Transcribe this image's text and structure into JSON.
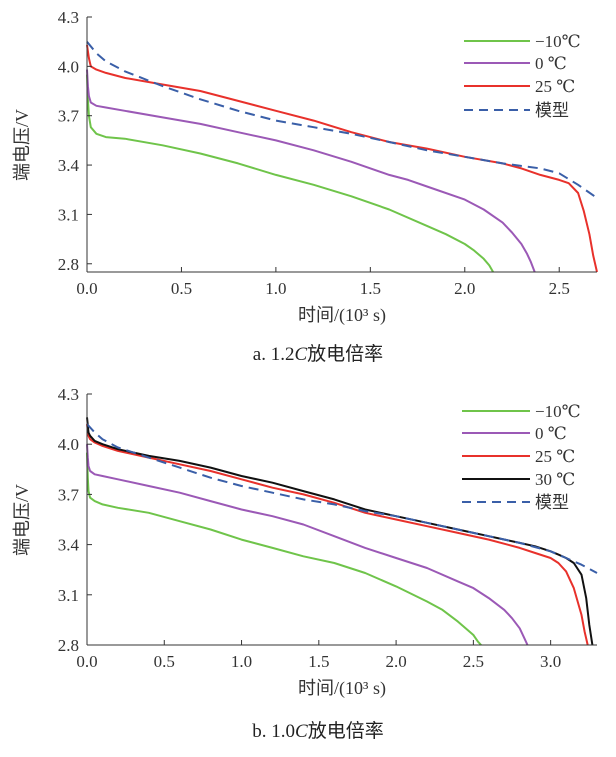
{
  "chart_data": [
    {
      "type": "line",
      "caption": "a. 1.2C放电倍率",
      "caption_prefix": "a. 1.2",
      "caption_italic": "C",
      "caption_suffix": "放电倍率",
      "xlabel": "时间/(10³ s)",
      "ylabel": "端电压/V",
      "xlim": [
        0,
        2.7
      ],
      "ylim": [
        2.75,
        4.3
      ],
      "xticks": [
        "0.0",
        "0.5",
        "1.0",
        "1.5",
        "2.0",
        "2.5"
      ],
      "xtick_values": [
        0,
        0.5,
        1.0,
        1.5,
        2.0,
        2.5
      ],
      "yticks": [
        "2.8",
        "3.1",
        "3.4",
        "3.7",
        "4.0",
        "4.3"
      ],
      "ytick_values": [
        2.8,
        3.1,
        3.4,
        3.7,
        4.0,
        4.3
      ],
      "legend_position": "top-right",
      "series": [
        {
          "name": "−10℃",
          "color": "#6fc44a",
          "dash": false,
          "x": [
            0,
            0.005,
            0.01,
            0.02,
            0.05,
            0.1,
            0.2,
            0.4,
            0.6,
            0.8,
            1.0,
            1.2,
            1.4,
            1.6,
            1.8,
            1.9,
            2.0,
            2.05,
            2.1,
            2.13,
            2.15
          ],
          "y": [
            3.95,
            3.8,
            3.7,
            3.63,
            3.59,
            3.57,
            3.56,
            3.52,
            3.47,
            3.41,
            3.34,
            3.28,
            3.21,
            3.13,
            3.03,
            2.98,
            2.92,
            2.88,
            2.83,
            2.79,
            2.75
          ]
        },
        {
          "name": "0 ℃",
          "color": "#9b59b6",
          "dash": false,
          "x": [
            0,
            0.005,
            0.01,
            0.02,
            0.05,
            0.1,
            0.2,
            0.4,
            0.6,
            0.8,
            1.0,
            1.2,
            1.4,
            1.6,
            1.7,
            1.8,
            2.0,
            2.1,
            2.2,
            2.25,
            2.3,
            2.33,
            2.35,
            2.37
          ],
          "y": [
            3.98,
            3.88,
            3.82,
            3.78,
            3.76,
            3.75,
            3.73,
            3.69,
            3.65,
            3.6,
            3.55,
            3.49,
            3.42,
            3.34,
            3.31,
            3.27,
            3.19,
            3.13,
            3.05,
            2.99,
            2.92,
            2.86,
            2.81,
            2.75
          ]
        },
        {
          "name": "25 ℃",
          "color": "#e8312b",
          "dash": false,
          "x": [
            0,
            0.01,
            0.02,
            0.05,
            0.1,
            0.2,
            0.4,
            0.6,
            0.8,
            1.0,
            1.2,
            1.4,
            1.6,
            1.8,
            2.0,
            2.2,
            2.3,
            2.4,
            2.5,
            2.55,
            2.6,
            2.63,
            2.66,
            2.68,
            2.7
          ],
          "y": [
            4.13,
            4.05,
            4.0,
            3.98,
            3.96,
            3.93,
            3.89,
            3.85,
            3.79,
            3.73,
            3.67,
            3.6,
            3.54,
            3.5,
            3.45,
            3.41,
            3.38,
            3.34,
            3.31,
            3.29,
            3.23,
            3.12,
            2.98,
            2.85,
            2.75
          ]
        },
        {
          "name": "模型",
          "color": "#3a5fa8",
          "dash": true,
          "x": [
            0,
            0.05,
            0.1,
            0.2,
            0.4,
            0.6,
            0.8,
            1.0,
            1.2,
            1.4,
            1.6,
            1.8,
            2.0,
            2.2,
            2.4,
            2.5,
            2.6,
            2.7
          ],
          "y": [
            4.15,
            4.08,
            4.03,
            3.97,
            3.88,
            3.8,
            3.73,
            3.67,
            3.63,
            3.59,
            3.54,
            3.49,
            3.45,
            3.41,
            3.38,
            3.35,
            3.28,
            3.2
          ]
        }
      ]
    },
    {
      "type": "line",
      "caption": "b. 1.0C放电倍率",
      "caption_prefix": "b. 1.0",
      "caption_italic": "C",
      "caption_suffix": "放电倍率",
      "xlabel": "时间/(10³ s)",
      "ylabel": "端电压/V",
      "xlim": [
        0,
        3.3
      ],
      "ylim": [
        2.8,
        4.3
      ],
      "xticks": [
        "0.0",
        "0.5",
        "1.0",
        "1.5",
        "2.0",
        "2.5",
        "3.0"
      ],
      "xtick_values": [
        0,
        0.5,
        1.0,
        1.5,
        2.0,
        2.5,
        3.0
      ],
      "yticks": [
        "2.8",
        "3.1",
        "3.4",
        "3.7",
        "4.0",
        "4.3"
      ],
      "ytick_values": [
        2.8,
        3.1,
        3.4,
        3.7,
        4.0,
        4.3
      ],
      "legend_position": "top-right",
      "series": [
        {
          "name": "−10℃",
          "color": "#6fc44a",
          "dash": false,
          "x": [
            0,
            0.005,
            0.01,
            0.02,
            0.05,
            0.1,
            0.2,
            0.4,
            0.6,
            0.8,
            1.0,
            1.2,
            1.4,
            1.6,
            1.8,
            2.0,
            2.2,
            2.3,
            2.4,
            2.45,
            2.5,
            2.53,
            2.55
          ],
          "y": [
            3.95,
            3.8,
            3.72,
            3.68,
            3.66,
            3.64,
            3.62,
            3.59,
            3.54,
            3.49,
            3.43,
            3.38,
            3.33,
            3.29,
            3.23,
            3.15,
            3.06,
            3.01,
            2.94,
            2.9,
            2.86,
            2.82,
            2.8
          ]
        },
        {
          "name": "0 ℃",
          "color": "#9b59b6",
          "dash": false,
          "x": [
            0,
            0.005,
            0.01,
            0.02,
            0.05,
            0.1,
            0.2,
            0.4,
            0.6,
            0.8,
            1.0,
            1.2,
            1.4,
            1.6,
            1.8,
            2.0,
            2.2,
            2.4,
            2.5,
            2.6,
            2.7,
            2.75,
            2.8,
            2.83,
            2.85
          ],
          "y": [
            4.0,
            3.92,
            3.87,
            3.84,
            3.82,
            3.81,
            3.79,
            3.75,
            3.71,
            3.66,
            3.61,
            3.57,
            3.52,
            3.45,
            3.38,
            3.32,
            3.26,
            3.18,
            3.14,
            3.08,
            3.01,
            2.96,
            2.9,
            2.84,
            2.8
          ]
        },
        {
          "name": "25 ℃",
          "color": "#e8312b",
          "dash": false,
          "x": [
            0,
            0.01,
            0.02,
            0.05,
            0.1,
            0.2,
            0.4,
            0.6,
            0.8,
            1.0,
            1.2,
            1.4,
            1.6,
            1.8,
            2.0,
            2.2,
            2.4,
            2.6,
            2.8,
            2.9,
            3.0,
            3.05,
            3.1,
            3.15,
            3.2,
            3.22,
            3.24
          ],
          "y": [
            4.12,
            4.05,
            4.03,
            4.01,
            3.99,
            3.96,
            3.92,
            3.88,
            3.84,
            3.79,
            3.74,
            3.7,
            3.65,
            3.59,
            3.55,
            3.51,
            3.47,
            3.43,
            3.38,
            3.35,
            3.32,
            3.29,
            3.24,
            3.14,
            2.98,
            2.88,
            2.8
          ]
        },
        {
          "name": "30 ℃",
          "color": "#111111",
          "dash": false,
          "x": [
            0,
            0.01,
            0.02,
            0.05,
            0.1,
            0.2,
            0.4,
            0.6,
            0.8,
            1.0,
            1.2,
            1.4,
            1.6,
            1.8,
            2.0,
            2.2,
            2.4,
            2.6,
            2.8,
            2.9,
            3.0,
            3.05,
            3.1,
            3.15,
            3.2,
            3.23,
            3.25,
            3.27
          ],
          "y": [
            4.16,
            4.07,
            4.05,
            4.02,
            4.0,
            3.97,
            3.93,
            3.9,
            3.86,
            3.81,
            3.77,
            3.72,
            3.67,
            3.61,
            3.57,
            3.53,
            3.49,
            3.45,
            3.41,
            3.39,
            3.36,
            3.34,
            3.32,
            3.29,
            3.22,
            3.08,
            2.92,
            2.8
          ]
        },
        {
          "name": "模型",
          "color": "#3a5fa8",
          "dash": true,
          "x": [
            0,
            0.05,
            0.1,
            0.2,
            0.4,
            0.6,
            0.8,
            1.0,
            1.2,
            1.4,
            1.6,
            1.8,
            2.0,
            2.2,
            2.4,
            2.6,
            2.8,
            3.0,
            3.1,
            3.2,
            3.3
          ],
          "y": [
            4.12,
            4.07,
            4.03,
            3.98,
            3.92,
            3.86,
            3.8,
            3.75,
            3.71,
            3.67,
            3.64,
            3.6,
            3.57,
            3.53,
            3.49,
            3.45,
            3.41,
            3.36,
            3.32,
            3.28,
            3.23
          ]
        }
      ]
    }
  ]
}
